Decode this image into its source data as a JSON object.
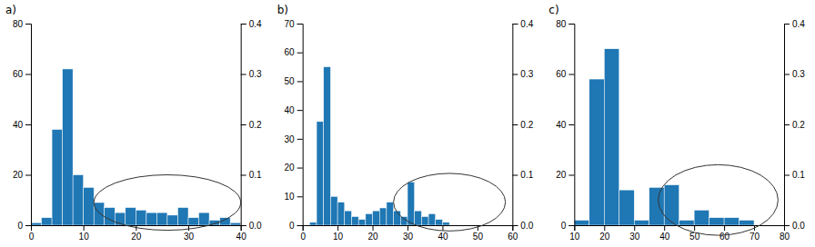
{
  "chart_data": [
    {
      "type": "histogram",
      "title": "a)",
      "bins": [
        0,
        2,
        4,
        6,
        8,
        10,
        12,
        14,
        16,
        18,
        20,
        22,
        24,
        26,
        28,
        30,
        32,
        34,
        36,
        38,
        40
      ],
      "values": [
        1,
        3,
        38,
        62,
        20,
        15,
        9,
        7,
        5,
        7,
        6,
        5,
        5,
        4,
        7,
        3,
        5,
        2,
        3,
        1
      ],
      "xlim": [
        0,
        40
      ],
      "xticks": [
        0,
        10,
        20,
        30,
        40
      ],
      "ylim": [
        0,
        80
      ],
      "yticks": [
        0,
        20,
        40,
        60,
        80
      ],
      "y2lim": [
        0,
        0.4
      ],
      "y2ticks": [
        {
          "value": 0,
          "label": "0.0"
        },
        0.1,
        0.2,
        0.3,
        0.4
      ],
      "ellipse": {
        "center_x": 26,
        "center_y": 9,
        "rx": 14,
        "ry": 11
      }
    },
    {
      "type": "histogram",
      "title": "b)",
      "bins": [
        0,
        2,
        4,
        6,
        8,
        10,
        12,
        14,
        16,
        18,
        20,
        22,
        24,
        26,
        28,
        30,
        32,
        34,
        36,
        38,
        40,
        42,
        44,
        46,
        48,
        50,
        52,
        54,
        56,
        58,
        60
      ],
      "values": [
        0,
        1,
        36,
        55,
        10,
        8,
        5,
        3,
        2,
        4,
        5,
        6,
        8,
        5,
        3,
        15,
        5,
        3,
        4,
        2,
        1,
        0,
        0,
        0,
        0,
        0,
        0,
        0,
        0,
        0
      ],
      "xlim": [
        0,
        60
      ],
      "xticks": [
        0,
        10,
        20,
        30,
        40,
        50,
        60
      ],
      "ylim": [
        0,
        70
      ],
      "yticks": [
        0,
        10,
        20,
        30,
        40,
        50,
        60,
        70
      ],
      "y2lim": [
        0,
        0.4
      ],
      "y2ticks": [
        {
          "value": 0,
          "label": "0.0"
        },
        0.1,
        0.2,
        0.3,
        0.4
      ],
      "ellipse": {
        "center_x": 42,
        "center_y": 8,
        "rx": 16,
        "ry": 10
      }
    },
    {
      "type": "histogram",
      "title": "c)",
      "bins": [
        10,
        15,
        20,
        25,
        30,
        35,
        40,
        45,
        50,
        55,
        60,
        65,
        70,
        75,
        80
      ],
      "values": [
        2,
        58,
        70,
        14,
        2,
        15,
        16,
        2,
        6,
        3,
        3,
        2,
        0,
        0
      ],
      "xlim": [
        10,
        80
      ],
      "xticks": [
        10,
        20,
        30,
        40,
        50,
        60,
        70,
        80
      ],
      "ylim": [
        0,
        80
      ],
      "yticks": [
        0,
        20,
        40,
        60,
        80
      ],
      "y2lim": [
        0,
        0.4
      ],
      "y2ticks": [
        {
          "value": 0,
          "label": "0.0"
        },
        0.1,
        0.2,
        0.3,
        0.4
      ],
      "ellipse": {
        "center_x": 58,
        "center_y": 10,
        "rx": 20,
        "ry": 14
      }
    }
  ]
}
